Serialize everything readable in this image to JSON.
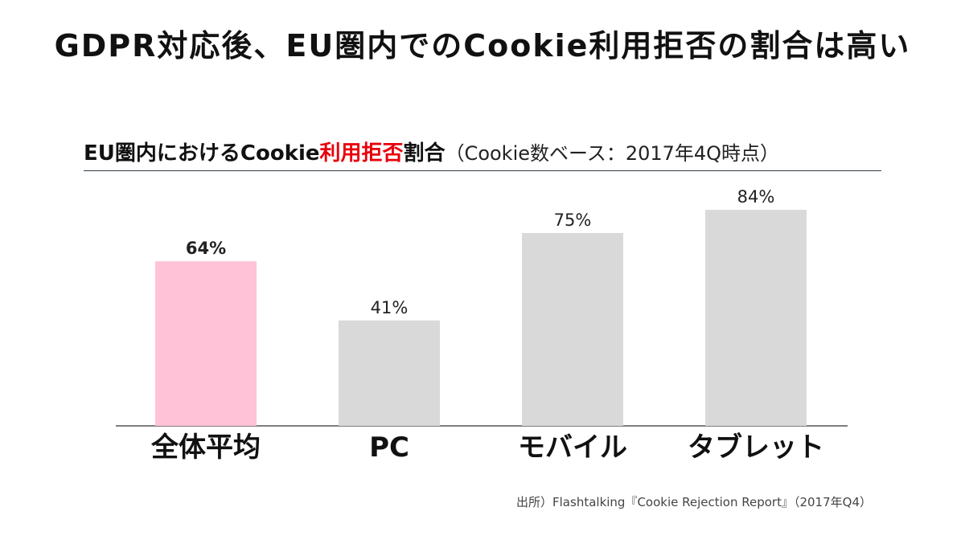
{
  "header": {
    "title": "GDPR対応後、EU圏内でのCookie利用拒否の割合は高い"
  },
  "chart_title": {
    "part1": "EU圏内におけるCookie",
    "part2_highlight": "利用拒否",
    "part3": "割合",
    "note": "（Cookie数ベース：2017年4Q時点）"
  },
  "chart_data": {
    "type": "bar",
    "title": "EU圏内におけるCookie利用拒否割合（Cookie数ベース：2017年4Q時点）",
    "categories": [
      "全体平均",
      "PC",
      "モバイル",
      "タブレット"
    ],
    "values": [
      64,
      41,
      75,
      84
    ],
    "value_labels": [
      "64%",
      "41%",
      "75%",
      "84%"
    ],
    "unit": "%",
    "ylim": [
      0,
      100
    ],
    "grid": false,
    "legend": "none",
    "highlight_index": 0
  },
  "colors": {
    "bar_default": "#d9d9d9",
    "bar_highlight": "#ffc2d6",
    "label_highlight": "#e8000b",
    "label_default": "#222222",
    "axis": "#555555"
  },
  "source": {
    "text": "出所）Flashtalking『Cookie Rejection Report』（2017年Q4）"
  }
}
